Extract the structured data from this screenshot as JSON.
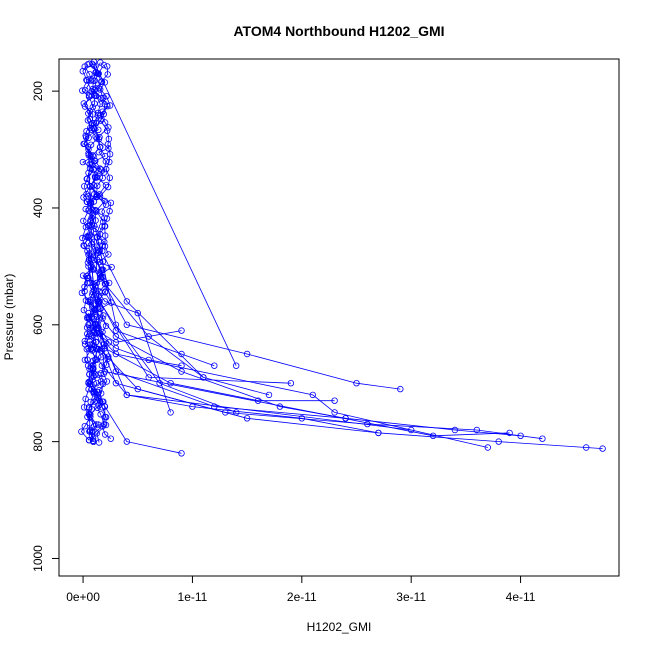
{
  "chart_data": {
    "type": "line",
    "title": "ATOM4 Northbound H1202_GMI",
    "xlabel": "H1202_GMI",
    "ylabel": "Pressure (mbar)",
    "xlim": [
      -2.2e-12,
      4.9e-11
    ],
    "ylim": [
      1030,
      145
    ],
    "y_axis_reversed": true,
    "x_ticks": [
      0,
      1e-11,
      2e-11,
      3e-11,
      4e-11
    ],
    "x_tick_labels": [
      "0e+00",
      "1e-11",
      "2e-11",
      "3e-11",
      "4e-11"
    ],
    "y_ticks": [
      200,
      400,
      600,
      800,
      1000
    ],
    "y_tick_labels": [
      "200",
      "400",
      "600",
      "800",
      "1000"
    ],
    "grid": false,
    "legend": "none",
    "marker": "open-circle",
    "color": "#0000ff",
    "profiles": [
      {
        "x": [
          5e-13,
          1e-12,
          3e-12,
          6e-12,
          9e-12
        ],
        "y": [
          560,
          610,
          640,
          660,
          670
        ]
      },
      {
        "x": [
          1e-12,
          3e-12,
          9e-12,
          1.2e-11
        ],
        "y": [
          540,
          610,
          650,
          670
        ]
      },
      {
        "x": [
          1e-12,
          1.4e-11
        ],
        "y": [
          150,
          670
        ]
      },
      {
        "x": [
          5e-13,
          4e-12,
          1.5e-11,
          2.5e-11,
          2.9e-11
        ],
        "y": [
          480,
          600,
          650,
          700,
          710
        ]
      },
      {
        "x": [
          5e-13,
          2e-12,
          8e-12,
          1.6e-11,
          2.3e-11
        ],
        "y": [
          500,
          640,
          700,
          730,
          730
        ]
      },
      {
        "x": [
          5e-13,
          3e-12,
          1.2e-11,
          2.4e-11,
          3.4e-11,
          4e-11
        ],
        "y": [
          560,
          680,
          740,
          760,
          780,
          790
        ]
      },
      {
        "x": [
          5e-13,
          3e-12,
          1.3e-11,
          2.6e-11,
          3.6e-11,
          4.2e-11
        ],
        "y": [
          580,
          700,
          750,
          770,
          780,
          795
        ]
      },
      {
        "x": [
          5e-13,
          5e-12,
          1.5e-11,
          2.7e-11,
          3.8e-11,
          4.6e-11,
          4.75e-11
        ],
        "y": [
          620,
          710,
          760,
          785,
          800,
          810,
          812
        ]
      },
      {
        "x": [
          5e-13,
          4e-12,
          1e-11,
          2e-11,
          2.7e-11
        ],
        "y": [
          640,
          720,
          740,
          760,
          785
        ]
      },
      {
        "x": [
          5e-13,
          3e-12,
          9e-12,
          1.8e-11,
          2.4e-11
        ],
        "y": [
          560,
          620,
          680,
          740,
          760
        ]
      },
      {
        "x": [
          5e-13,
          2e-12,
          6e-12,
          1.1e-11
        ],
        "y": [
          450,
          530,
          620,
          690
        ]
      },
      {
        "x": [
          5e-13,
          2e-12,
          4e-12,
          9e-12
        ],
        "y": [
          700,
          740,
          800,
          820
        ]
      },
      {
        "x": [
          5e-13,
          3e-12,
          9e-12
        ],
        "y": [
          600,
          630,
          610
        ]
      },
      {
        "x": [
          5e-13,
          2e-12,
          5e-12,
          8e-12
        ],
        "y": [
          520,
          560,
          580,
          750
        ]
      },
      {
        "x": [
          5e-13,
          3e-12,
          2.1e-11,
          2.3e-11,
          3.7e-11
        ],
        "y": [
          600,
          650,
          720,
          750,
          810
        ]
      },
      {
        "x": [
          5e-13,
          4e-12,
          1.1e-11,
          1.7e-11
        ],
        "y": [
          430,
          560,
          690,
          720
        ]
      },
      {
        "x": [
          5e-13,
          3e-12,
          7e-12,
          1.4e-11
        ],
        "y": [
          380,
          600,
          700,
          750
        ]
      },
      {
        "x": [
          5e-13,
          1e-12,
          4e-12,
          3e-11
        ],
        "y": [
          300,
          590,
          720,
          780
        ]
      },
      {
        "x": [
          5e-13,
          2e-12,
          3.2e-11,
          3.9e-11
        ],
        "y": [
          460,
          680,
          790,
          785
        ]
      },
      {
        "x": [
          5e-13,
          1.5e-12,
          6e-12,
          1.9e-11
        ],
        "y": [
          340,
          560,
          690,
          700
        ]
      }
    ],
    "column_x": [
      2e-13,
      4e-13,
      6e-13,
      8e-13,
      1e-12,
      1.2e-12,
      1.5e-12,
      1.8e-12
    ],
    "column_y_range": [
      150,
      795
    ]
  }
}
